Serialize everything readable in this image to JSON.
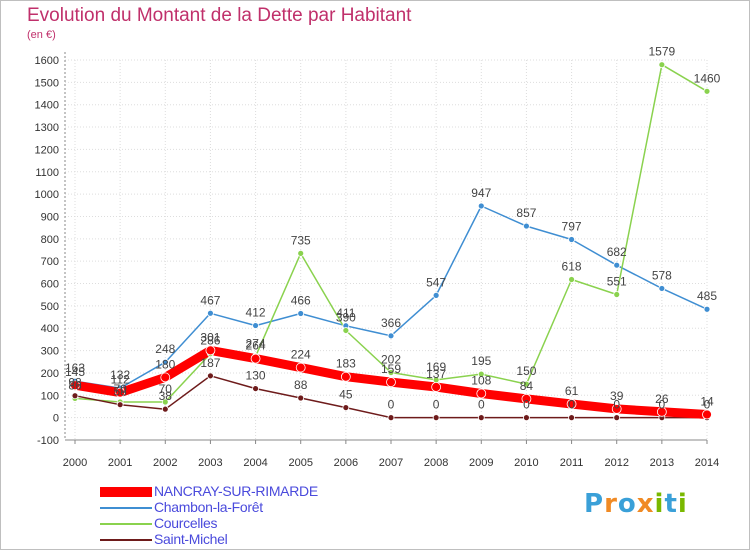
{
  "title": "Evolution du Montant de la Dette par Habitant",
  "subtitle": "(en €)",
  "logo": {
    "text": "Proxiti",
    "letters": [
      "P",
      "r",
      "o",
      "x",
      "i",
      "t",
      "i"
    ],
    "colors": [
      "#3aa0d8",
      "#f08a24",
      "#3aa0d8",
      "#f08a24",
      "#7ab800",
      "#3aa0d8",
      "#7ab800"
    ]
  },
  "chart_data": {
    "type": "line",
    "x": [
      "2000",
      "2001",
      "2002",
      "2003",
      "2004",
      "2005",
      "2006",
      "2007",
      "2008",
      "2009",
      "2010",
      "2011",
      "2012",
      "2013",
      "2014"
    ],
    "ylim": [
      -100,
      1600
    ],
    "yticks": [
      "-100",
      "0",
      "100",
      "200",
      "300",
      "400",
      "500",
      "600",
      "700",
      "800",
      "900",
      "1000",
      "1100",
      "1200",
      "1300",
      "1400",
      "1500",
      "1600"
    ],
    "grid": true,
    "legend_position": "bottom-left",
    "series": [
      {
        "name": "NANCRAY-SUR-RIMARDE",
        "color": "#ff0000",
        "values": [
          145,
          112,
          180,
          301,
          264,
          224,
          183,
          159,
          137,
          108,
          84,
          61,
          39,
          26,
          14
        ],
        "labels": [
          "145",
          "112",
          "180",
          "301",
          "264",
          "224",
          "183",
          "159",
          "137",
          "108",
          "84",
          "61",
          "39",
          "26",
          "14"
        ]
      },
      {
        "name": "Chambon-la-Forêt",
        "color": "#3f8ed2",
        "values": [
          163,
          132,
          248,
          467,
          412,
          466,
          411,
          366,
          547,
          947,
          857,
          797,
          682,
          578,
          485
        ],
        "labels": [
          "163",
          "132",
          "248",
          "467",
          "412",
          "466",
          "411",
          "366",
          "547",
          "947",
          "857",
          "797",
          "682",
          "578",
          "485"
        ]
      },
      {
        "name": "Courcelles",
        "color": "#8ad24e",
        "values": [
          86,
          70,
          70,
          286,
          274,
          735,
          390,
          202,
          169,
          195,
          150,
          618,
          551,
          1579,
          1460
        ],
        "labels": [
          "86",
          "70",
          "70",
          "286",
          "274",
          "735",
          "390",
          "202",
          "169",
          "195",
          "150",
          "618",
          "551",
          "1579",
          "1460"
        ]
      },
      {
        "name": "Saint-Michel",
        "color": "#6e1b1b",
        "values": [
          98,
          58,
          38,
          187,
          130,
          88,
          45,
          0,
          0,
          0,
          0,
          0,
          0,
          0,
          0
        ],
        "labels": [
          "98",
          "58",
          "38",
          "187",
          "130",
          "88",
          "45",
          "0",
          "0",
          "0",
          "0",
          "0",
          "0",
          "0",
          "0"
        ]
      }
    ]
  }
}
